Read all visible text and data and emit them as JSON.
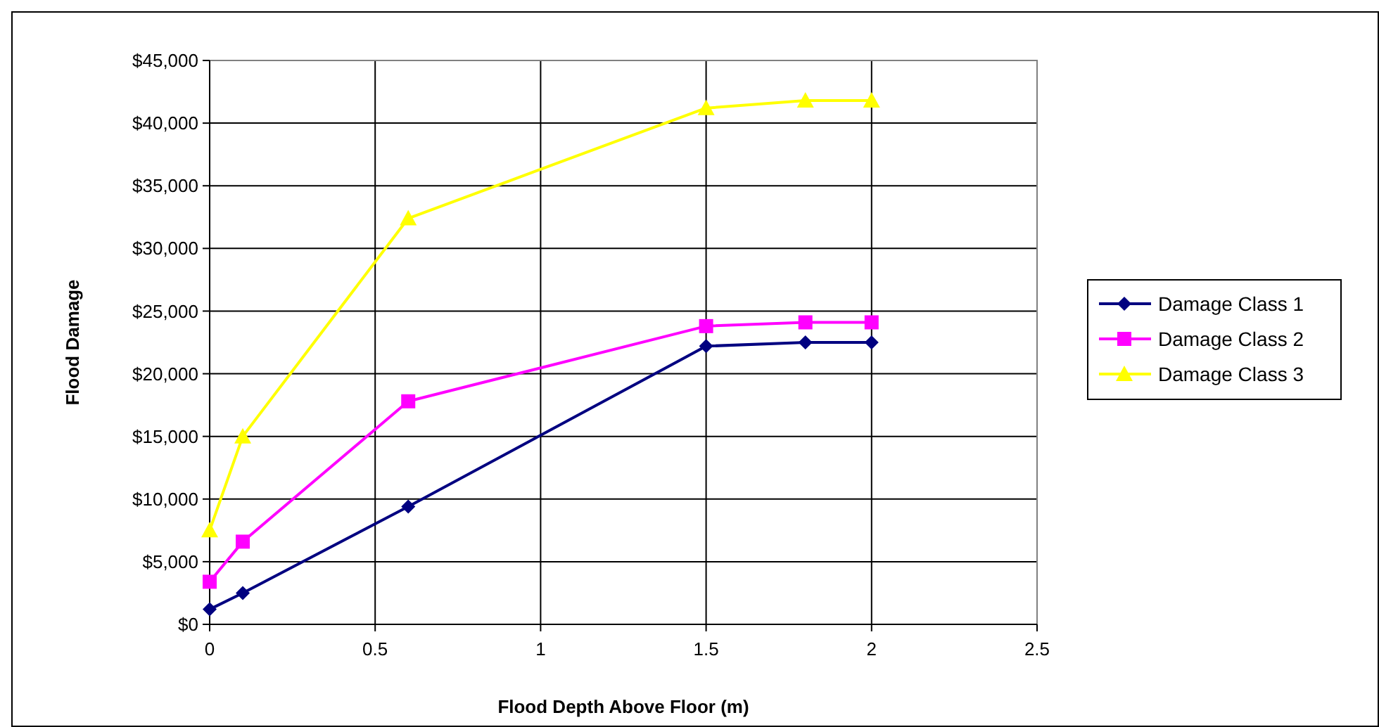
{
  "chart_data": {
    "type": "line",
    "xlabel": "Flood Depth Above Floor (m)",
    "ylabel": "Flood Damage",
    "x": [
      0,
      0.1,
      0.6,
      1.5,
      1.8,
      2
    ],
    "series": [
      {
        "name": "Damage Class 1",
        "color": "#000080",
        "marker": "diamond",
        "values": [
          1200,
          2500,
          9400,
          22200,
          22500,
          22500
        ]
      },
      {
        "name": "Damage Class 2",
        "color": "#ff00ff",
        "marker": "square",
        "values": [
          3400,
          6600,
          17800,
          23800,
          24100,
          24100
        ]
      },
      {
        "name": "Damage Class 3",
        "color": "#ffff00",
        "marker": "triangle",
        "values": [
          7500,
          15000,
          32400,
          41200,
          41800,
          41800
        ]
      }
    ],
    "xlim": [
      0,
      2.5
    ],
    "xticks": [
      0,
      0.5,
      1,
      1.5,
      2,
      2.5
    ],
    "ylim": [
      0,
      45000
    ],
    "yticks": [
      {
        "value": 0,
        "label": "$0"
      },
      {
        "value": 5000,
        "label": "$5,000"
      },
      {
        "value": 10000,
        "label": "$10,000"
      },
      {
        "value": 15000,
        "label": "$15,000"
      },
      {
        "value": 20000,
        "label": "$20,000"
      },
      {
        "value": 25000,
        "label": "$25,000"
      },
      {
        "value": 30000,
        "label": "$30,000"
      },
      {
        "value": 35000,
        "label": "$35,000"
      },
      {
        "value": 40000,
        "label": "$40,000"
      },
      {
        "value": 45000,
        "label": "$45,000"
      }
    ],
    "grid": true,
    "legend": "right"
  }
}
